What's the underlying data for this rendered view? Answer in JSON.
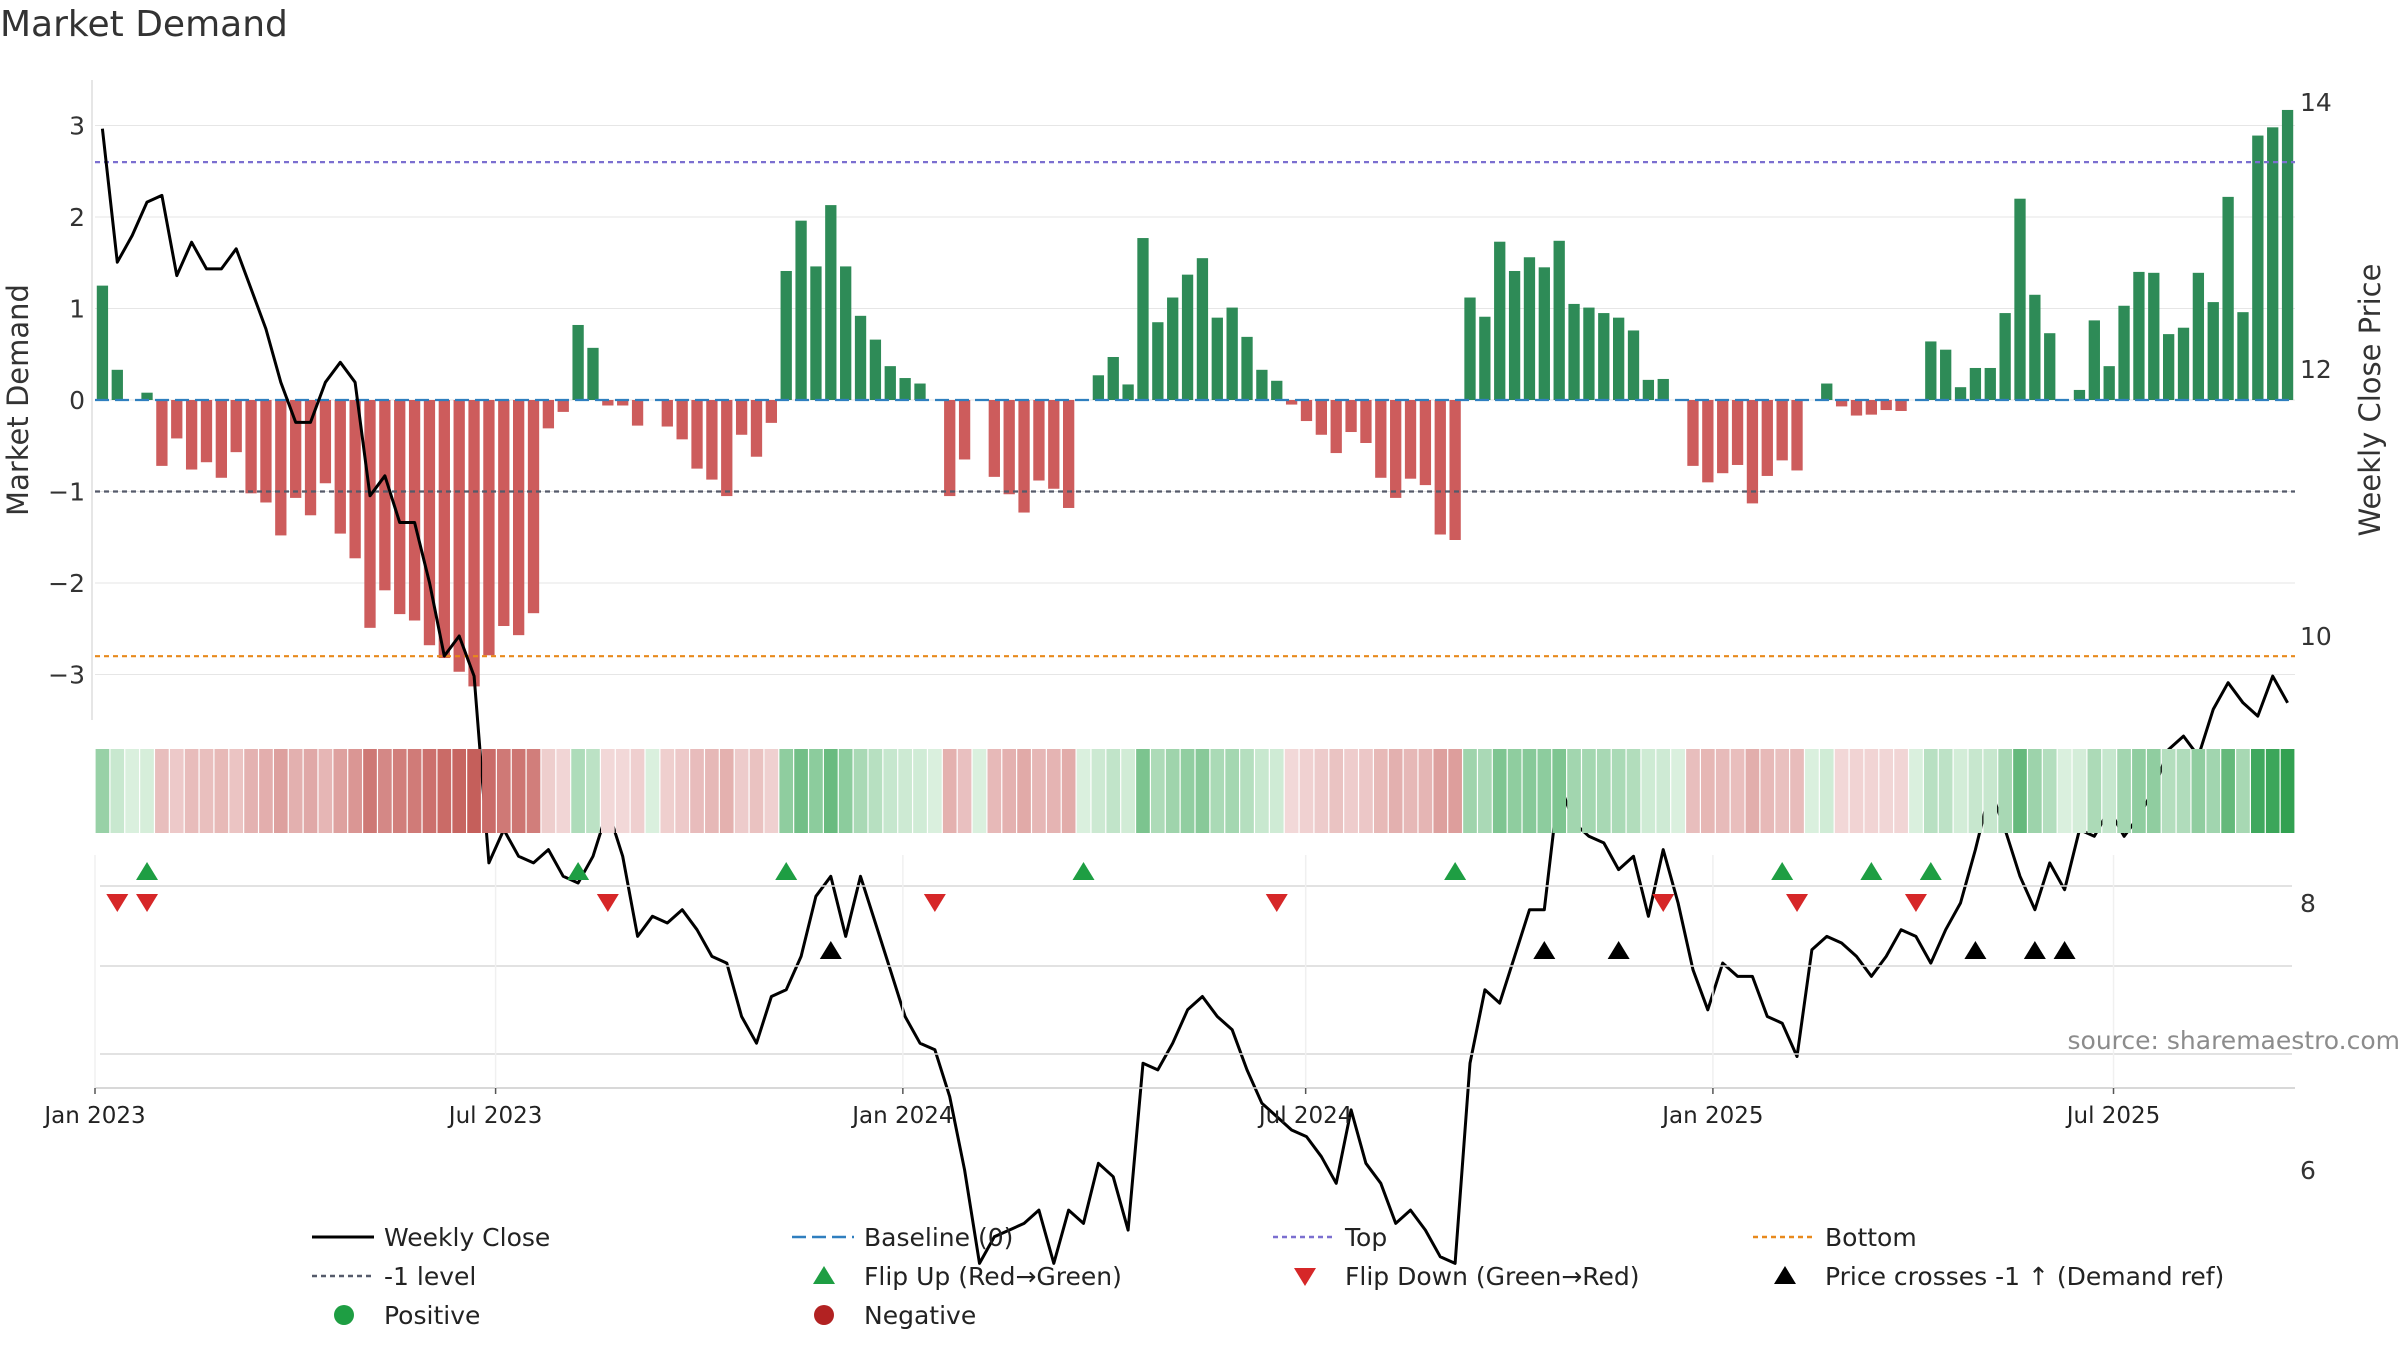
{
  "chart_data": {
    "type": "bar",
    "title": "Market Demand",
    "ylabel": "Market Demand",
    "y2label": "Weekly Close Price",
    "ylim": [
      -3.5,
      3.5
    ],
    "y2lim": [
      4.8,
      14.0
    ],
    "yticks": [
      3,
      2,
      1,
      0,
      -1,
      -2,
      -3
    ],
    "y2ticks": [
      14,
      12,
      10,
      8,
      6
    ],
    "x_start": "2023-01-01",
    "x_end": "2025-09-21",
    "xticks": [
      {
        "label": "Jan 2023",
        "date": "2023-01-01"
      },
      {
        "label": "Jul 2023",
        "date": "2023-07-01"
      },
      {
        "label": "Jan 2024",
        "date": "2024-01-01"
      },
      {
        "label": "Jul 2024",
        "date": "2024-07-01"
      },
      {
        "label": "Jan 2025",
        "date": "2025-01-01"
      },
      {
        "label": "Jul 2025",
        "date": "2025-07-01"
      }
    ],
    "reference_lines": [
      {
        "name": "Top",
        "value": 2.6,
        "color": "#7b6fd0",
        "dash": "5,4"
      },
      {
        "name": "-1 level",
        "value": -1.0,
        "color": "#555a6a",
        "dash": "5,4"
      },
      {
        "name": "Bottom",
        "value": -2.8,
        "color": "#e8891c",
        "dash": "5,4"
      },
      {
        "name": "Baseline (0)",
        "value": 0.0,
        "color": "#2f7fbf",
        "dash": "14,6"
      }
    ],
    "demand_weekly": [
      1.25,
      0.33,
      0,
      0.08,
      -0.72,
      -0.42,
      -0.76,
      -0.68,
      -0.85,
      -0.57,
      -1.02,
      -1.12,
      -1.48,
      -1.07,
      -1.26,
      -0.91,
      -1.46,
      -1.73,
      -2.49,
      -2.08,
      -2.34,
      -2.41,
      -2.68,
      -2.82,
      -2.97,
      -3.13,
      -2.79,
      -2.47,
      -2.57,
      -2.33,
      -0.31,
      -0.13,
      0.82,
      0.57,
      -0.06,
      -0.06,
      -0.28,
      0,
      -0.29,
      -0.43,
      -0.75,
      -0.87,
      -1.05,
      -0.38,
      -0.62,
      -0.25,
      1.41,
      1.96,
      1.46,
      2.13,
      1.46,
      0.92,
      0.66,
      0.37,
      0.24,
      0.18,
      0,
      -1.05,
      -0.65,
      0,
      -0.84,
      -1.03,
      -1.23,
      -0.88,
      -0.97,
      -1.18,
      0,
      0.27,
      0.47,
      0.17,
      1.77,
      0.85,
      1.12,
      1.37,
      1.55,
      0.9,
      1.01,
      0.69,
      0.33,
      0.21,
      -0.05,
      -0.23,
      -0.38,
      -0.58,
      -0.35,
      -0.47,
      -0.85,
      -1.07,
      -0.86,
      -0.93,
      -1.47,
      -1.53,
      1.12,
      0.91,
      1.73,
      1.41,
      1.56,
      1.45,
      1.74,
      1.05,
      1.01,
      0.95,
      0.9,
      0.76,
      0.22,
      0.23,
      0,
      -0.72,
      -0.9,
      -0.8,
      -0.71,
      -1.13,
      -0.83,
      -0.66,
      -0.77,
      0,
      0.18,
      -0.07,
      -0.17,
      -0.16,
      -0.11,
      -0.12,
      0,
      0.64,
      0.55,
      0.14,
      0.35,
      0.35,
      0.95,
      2.2,
      1.15,
      0.73,
      0,
      0.11,
      0.87,
      0.37,
      1.03,
      1.4,
      1.39,
      0.72,
      0.79,
      1.39,
      1.07,
      2.22,
      0.96,
      2.89,
      2.98,
      3.17
    ],
    "close_weekly": [
      13.8,
      12.8,
      13.0,
      13.25,
      13.3,
      12.7,
      12.95,
      12.75,
      12.75,
      12.9,
      12.6,
      12.3,
      11.9,
      11.6,
      11.6,
      11.9,
      12.05,
      11.9,
      11.05,
      11.2,
      10.85,
      10.85,
      10.4,
      9.85,
      10.0,
      9.7,
      8.3,
      8.55,
      8.35,
      8.3,
      8.4,
      8.2,
      8.15,
      8.35,
      8.7,
      8.35,
      7.75,
      7.9,
      7.85,
      7.95,
      7.8,
      7.6,
      7.55,
      7.15,
      6.95,
      7.3,
      7.35,
      7.6,
      8.05,
      8.2,
      7.75,
      8.2,
      7.85,
      7.5,
      7.15,
      6.95,
      6.9,
      6.55,
      6.0,
      5.3,
      5.5,
      5.55,
      5.6,
      5.7,
      5.3,
      5.7,
      5.6,
      6.05,
      5.95,
      5.55,
      6.8,
      6.75,
      6.95,
      7.2,
      7.3,
      7.15,
      7.05,
      6.75,
      6.5,
      6.4,
      6.3,
      6.25,
      6.1,
      5.9,
      6.45,
      6.05,
      5.9,
      5.6,
      5.7,
      5.55,
      5.35,
      5.3,
      6.8,
      7.35,
      7.25,
      7.6,
      7.95,
      7.95,
      8.9,
      8.6,
      8.5,
      8.45,
      8.25,
      8.35,
      7.9,
      8.4,
      8.0,
      7.5,
      7.2,
      7.55,
      7.45,
      7.45,
      7.15,
      7.1,
      6.85,
      7.65,
      7.75,
      7.7,
      7.6,
      7.45,
      7.6,
      7.8,
      7.75,
      7.55,
      7.8,
      8.0,
      8.4,
      8.85,
      8.55,
      8.2,
      7.95,
      8.3,
      8.1,
      8.55,
      8.5,
      8.7,
      8.5,
      8.65,
      8.85,
      9.15,
      9.25,
      9.1,
      9.45,
      9.65,
      9.5,
      9.4,
      9.7,
      9.5
    ],
    "heat_strip_ranges": [
      {
        "range": "Jan 2023 - Sep 2025",
        "encoding": "weekly demand (green = positive, red = negative)"
      }
    ],
    "event_markers": {
      "flip_up_indices": [
        3,
        32,
        46,
        66,
        91,
        113,
        119,
        123
      ],
      "flip_down_indices": [
        1,
        3,
        34,
        56,
        79,
        105,
        114,
        122
      ],
      "price_cross_indices": [
        49,
        97,
        102,
        126,
        130,
        132
      ]
    },
    "legend": [
      {
        "label": "Weekly Close",
        "kind": "line",
        "color": "#000000"
      },
      {
        "label": "Baseline (0)",
        "kind": "dash",
        "color": "#2f7fbf"
      },
      {
        "label": "Top",
        "kind": "dot",
        "color": "#7b6fd0"
      },
      {
        "label": "Bottom",
        "kind": "dot",
        "color": "#e8891c"
      },
      {
        "label": "-1 level",
        "kind": "dot",
        "color": "#555a6a"
      },
      {
        "label": "Flip Up (Red→Green)",
        "kind": "tri-up",
        "color": "#1e9e43"
      },
      {
        "label": "Flip Down (Green→Red)",
        "kind": "tri-down",
        "color": "#d62728"
      },
      {
        "label": "Price crosses -1 ↑ (Demand ref)",
        "kind": "tri-up",
        "color": "#000000"
      },
      {
        "label": "Positive",
        "kind": "circle",
        "color": "#1e9e43"
      },
      {
        "label": "Negative",
        "kind": "circle",
        "color": "#b22222"
      }
    ],
    "annotation": "source: sharemaestro.com",
    "colors": {
      "positive_bar": "#2e8b57",
      "negative_bar": "#cd5c5c",
      "close_line": "#000000",
      "grid": "#e6e6e6"
    }
  }
}
